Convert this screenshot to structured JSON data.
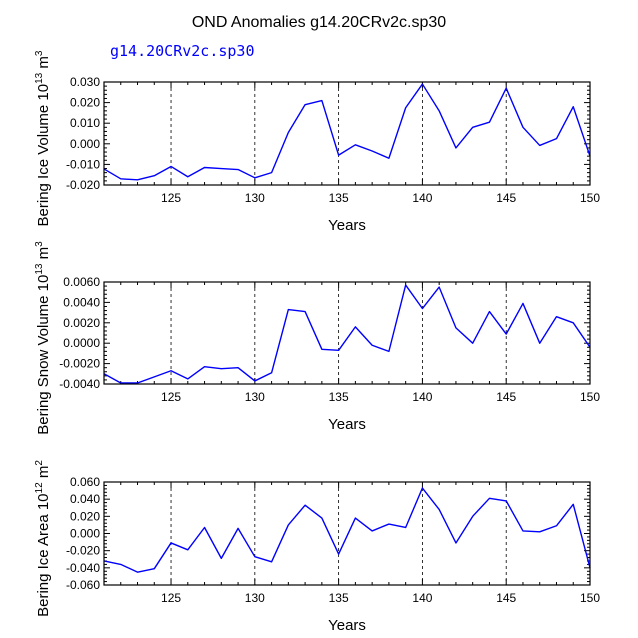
{
  "main_title": "OND Anomalies g14.20CRv2c.sp30",
  "line_color": "#0000ff",
  "chart_data": [
    {
      "type": "line",
      "legend": "g14.20CRv2c.sp30",
      "ylabel": "Bering Ice Volume 10",
      "ylabel_sup1": "13",
      "ylabel_unit": " m",
      "ylabel_sup2": "3",
      "xlabel": "Years",
      "xlim": [
        121,
        150
      ],
      "ylim": [
        -0.02,
        0.03
      ],
      "yticks": [
        -0.02,
        -0.01,
        0.0,
        0.01,
        0.02,
        0.03
      ],
      "ytick_labels": [
        "-0.020",
        "-0.010",
        "0.000",
        "0.010",
        "0.020",
        "0.030"
      ],
      "xticks": [
        125,
        130,
        135,
        140,
        145,
        150
      ],
      "xtick_labels": [
        "125",
        "130",
        "135",
        "140",
        "145",
        "150"
      ],
      "gridlines_x": [
        125,
        130,
        135,
        140,
        145
      ],
      "x": [
        121,
        122,
        123,
        124,
        125,
        126,
        127,
        128,
        129,
        130,
        131,
        132,
        133,
        134,
        135,
        136,
        137,
        138,
        139,
        140,
        141,
        142,
        143,
        144,
        145,
        146,
        147,
        148,
        149,
        150
      ],
      "values": [
        -0.0122,
        -0.017,
        -0.0175,
        -0.0155,
        -0.011,
        -0.016,
        -0.0115,
        -0.012,
        -0.0125,
        -0.0165,
        -0.014,
        0.0055,
        0.019,
        0.021,
        -0.0055,
        -0.0005,
        -0.0035,
        -0.007,
        0.0175,
        0.029,
        0.016,
        -0.002,
        0.008,
        0.0105,
        0.027,
        0.008,
        -0.0008,
        0.0025,
        0.018,
        -0.006
      ]
    },
    {
      "type": "line",
      "legend": "",
      "ylabel": "Bering Snow Volume 10",
      "ylabel_sup1": "13",
      "ylabel_unit": " m",
      "ylabel_sup2": "3",
      "xlabel": "Years",
      "xlim": [
        121,
        150
      ],
      "ylim": [
        -0.004,
        0.006
      ],
      "yticks": [
        -0.004,
        -0.002,
        0.0,
        0.002,
        0.004,
        0.006
      ],
      "ytick_labels": [
        "-0.0040",
        "-0.0020",
        "0.0000",
        "0.0020",
        "0.0040",
        "0.0060"
      ],
      "xticks": [
        125,
        130,
        135,
        140,
        145,
        150
      ],
      "xtick_labels": [
        "125",
        "130",
        "135",
        "140",
        "145",
        "150"
      ],
      "gridlines_x": [
        125,
        130,
        135,
        140,
        145
      ],
      "x": [
        121,
        122,
        123,
        124,
        125,
        126,
        127,
        128,
        129,
        130,
        131,
        132,
        133,
        134,
        135,
        136,
        137,
        138,
        139,
        140,
        141,
        142,
        143,
        144,
        145,
        146,
        147,
        148,
        149,
        150
      ],
      "values": [
        -0.003,
        -0.0039,
        -0.0039,
        -0.0033,
        -0.0027,
        -0.0035,
        -0.0023,
        -0.0025,
        -0.0024,
        -0.0037,
        -0.0029,
        0.0033,
        0.0031,
        -0.0006,
        -0.0007,
        0.0016,
        -0.0002,
        -0.0008,
        0.0057,
        0.0034,
        0.0055,
        0.0015,
        0.0,
        0.0031,
        0.0009,
        0.0039,
        0.0,
        0.0026,
        0.002,
        -0.0004
      ]
    },
    {
      "type": "line",
      "legend": "",
      "ylabel": "Bering Ice Area 10",
      "ylabel_sup1": "12",
      "ylabel_unit": " m",
      "ylabel_sup2": "2",
      "xlabel": "Years",
      "xlim": [
        121,
        150
      ],
      "ylim": [
        -0.06,
        0.06
      ],
      "yticks": [
        -0.06,
        -0.04,
        -0.02,
        0.0,
        0.02,
        0.04,
        0.06
      ],
      "ytick_labels": [
        "-0.060",
        "-0.040",
        "-0.020",
        "0.000",
        "0.020",
        "0.040",
        "0.060"
      ],
      "xticks": [
        125,
        130,
        135,
        140,
        145,
        150
      ],
      "xtick_labels": [
        "125",
        "130",
        "135",
        "140",
        "145",
        "150"
      ],
      "gridlines_x": [
        125,
        130,
        135,
        140,
        145
      ],
      "x": [
        121,
        122,
        123,
        124,
        125,
        126,
        127,
        128,
        129,
        130,
        131,
        132,
        133,
        134,
        135,
        136,
        137,
        138,
        139,
        140,
        141,
        142,
        143,
        144,
        145,
        146,
        147,
        148,
        149,
        150
      ],
      "values": [
        -0.032,
        -0.036,
        -0.045,
        -0.041,
        -0.011,
        -0.019,
        0.007,
        -0.029,
        0.006,
        -0.027,
        -0.033,
        0.01,
        0.033,
        0.018,
        -0.024,
        0.018,
        0.003,
        0.011,
        0.007,
        0.053,
        0.028,
        -0.011,
        0.02,
        0.041,
        0.038,
        0.003,
        0.002,
        0.009,
        0.034,
        -0.04
      ]
    }
  ]
}
